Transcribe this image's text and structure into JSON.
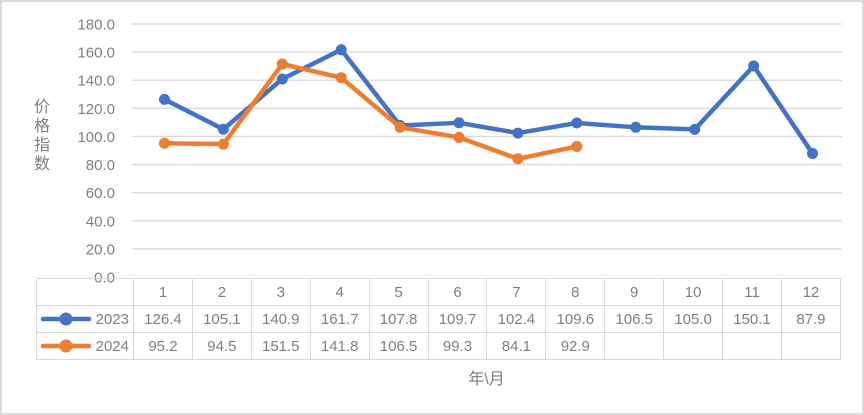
{
  "chart": {
    "y_axis_title": "价格指数",
    "x_axis_title": "年\\月"
  },
  "chart_data": {
    "type": "line",
    "title": "",
    "xlabel": "年\\月",
    "ylabel": "价格指数",
    "categories": [
      1,
      2,
      3,
      4,
      5,
      6,
      7,
      8,
      9,
      10,
      11,
      12
    ],
    "series": [
      {
        "name": "2023",
        "color": "#4472C4",
        "values": [
          126.4,
          105.1,
          140.9,
          161.7,
          107.8,
          109.7,
          102.4,
          109.6,
          106.5,
          105.0,
          150.1,
          87.9
        ]
      },
      {
        "name": "2024",
        "color": "#ED7D31",
        "values": [
          95.2,
          94.5,
          151.5,
          141.8,
          106.5,
          99.3,
          84.1,
          92.9
        ]
      }
    ],
    "ylim": [
      0,
      180
    ],
    "y_tick_step": 20,
    "y_tick_labels": [
      "0.0",
      "20.0",
      "40.0",
      "60.0",
      "80.0",
      "100.0",
      "120.0",
      "140.0",
      "160.0",
      "180.0"
    ],
    "grid": true,
    "marker": "circle",
    "legend_position": "data-table-left",
    "data_table": true
  },
  "colors": {
    "gridline": "#d9d9d9",
    "table_border": "#d9d9d9",
    "text": "#7f7f7f",
    "background": "#ffffff"
  }
}
